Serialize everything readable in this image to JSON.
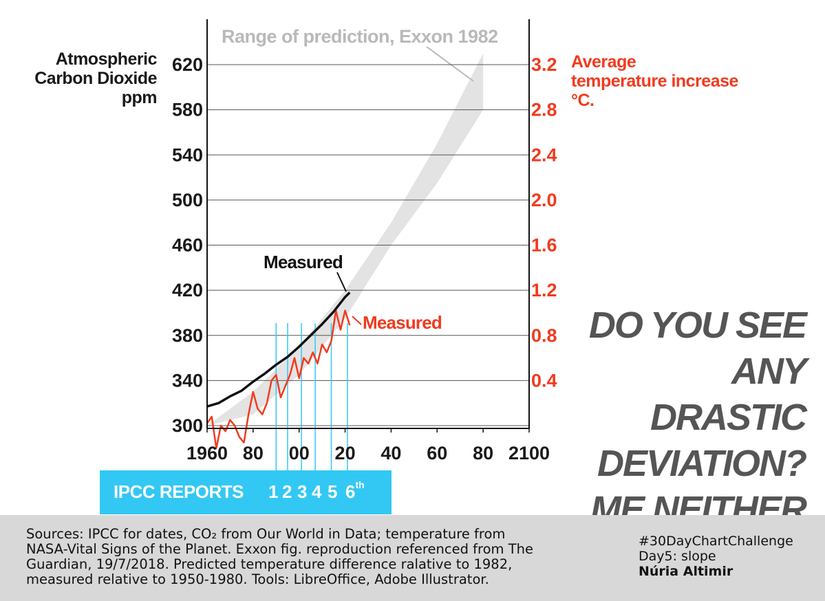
{
  "chart_data": {
    "type": "line",
    "title": "",
    "x_ticks": [
      "1960",
      "80",
      "00",
      "20",
      "40",
      "60",
      "80",
      "2100"
    ],
    "x_range": [
      1960,
      2100
    ],
    "y_left": {
      "label_lines": [
        "Atmospheric",
        "Carbon Dioxide",
        "ppm"
      ],
      "ticks": [
        "300",
        "340",
        "380",
        "420",
        "460",
        "500",
        "540",
        "580",
        "620"
      ],
      "range": [
        300,
        620
      ]
    },
    "y_right": {
      "label_lines": [
        "Average",
        "temperature increase",
        "°C."
      ],
      "ticks": [
        "0.4",
        "0.8",
        "1.2",
        "1.6",
        "2.0",
        "2.4",
        "2.8",
        "3.2"
      ],
      "range": [
        0,
        3.2
      ]
    },
    "prediction_band": {
      "label": "Range of prediction, Exxon 1982",
      "x": [
        1960,
        1980,
        2000,
        2020,
        2040,
        2060,
        2080
      ],
      "low_ppm": [
        300,
        310,
        345,
        395,
        460,
        515,
        580
      ],
      "high_ppm": [
        300,
        330,
        370,
        420,
        480,
        550,
        630
      ]
    },
    "series": [
      {
        "name": "Measured",
        "axis": "left",
        "unit": "ppm",
        "x": [
          1960,
          1965,
          1970,
          1975,
          1980,
          1985,
          1990,
          1995,
          2000,
          2005,
          2010,
          2015,
          2020,
          2022
        ],
        "values": [
          317,
          320,
          326,
          331,
          339,
          346,
          354,
          361,
          370,
          380,
          390,
          401,
          414,
          418
        ]
      },
      {
        "name": "Measured",
        "axis": "right",
        "unit": "°C",
        "x": [
          1960,
          1962,
          1964,
          1966,
          1968,
          1970,
          1972,
          1974,
          1976,
          1978,
          1980,
          1982,
          1984,
          1986,
          1988,
          1990,
          1992,
          1994,
          1996,
          1998,
          2000,
          2002,
          2004,
          2006,
          2008,
          2010,
          2012,
          2014,
          2016,
          2018,
          2020,
          2022
        ],
        "values": [
          0.02,
          0.08,
          -0.2,
          0.0,
          -0.05,
          0.05,
          0.0,
          -0.1,
          -0.15,
          0.1,
          0.3,
          0.15,
          0.1,
          0.2,
          0.4,
          0.45,
          0.25,
          0.35,
          0.45,
          0.6,
          0.42,
          0.6,
          0.55,
          0.65,
          0.55,
          0.72,
          0.65,
          0.75,
          1.02,
          0.85,
          1.02,
          0.89
        ]
      }
    ],
    "ipcc_report_years": [
      1990,
      1995,
      2001,
      2007,
      2014,
      2021
    ]
  },
  "annotations": {
    "prediction_label": "Range of prediction, Exxon 1982",
    "co2_measured_label": "Measured",
    "temp_measured_label": "Measured"
  },
  "ipcc": {
    "title": "IPCC REPORTS",
    "reports": [
      "1",
      "2",
      "3",
      "4",
      "5",
      "6"
    ],
    "last_suffix": "th"
  },
  "slogan": [
    "DO YOU SEE",
    "ANY",
    "DRASTIC",
    "DEVIATION?",
    "ME NEITHER"
  ],
  "footer": {
    "sources_lines": [
      "Sources: IPCC for dates, CO₂ from Our World in Data; temperature from",
      "NASA-Vital Signs of the Planet. Exxon fig. reproduction referenced from The",
      "Guardian, 19/7/2018.  Predicted temperature difference ralative to 1982,",
      "measured relative to 1950-1980. Tools: LibreOffice, Adobe Illustrator."
    ],
    "hashtag": "#30DayChartChallenge",
    "day": "Day5: slope",
    "author": "Núria Altimir"
  },
  "colors": {
    "co2": "#111111",
    "temperature": "#f23a1e",
    "band": "#e3e3e3",
    "ipcc": "#33c8f4",
    "slogan": "#555555",
    "footer_bg": "#d8d8d8"
  }
}
